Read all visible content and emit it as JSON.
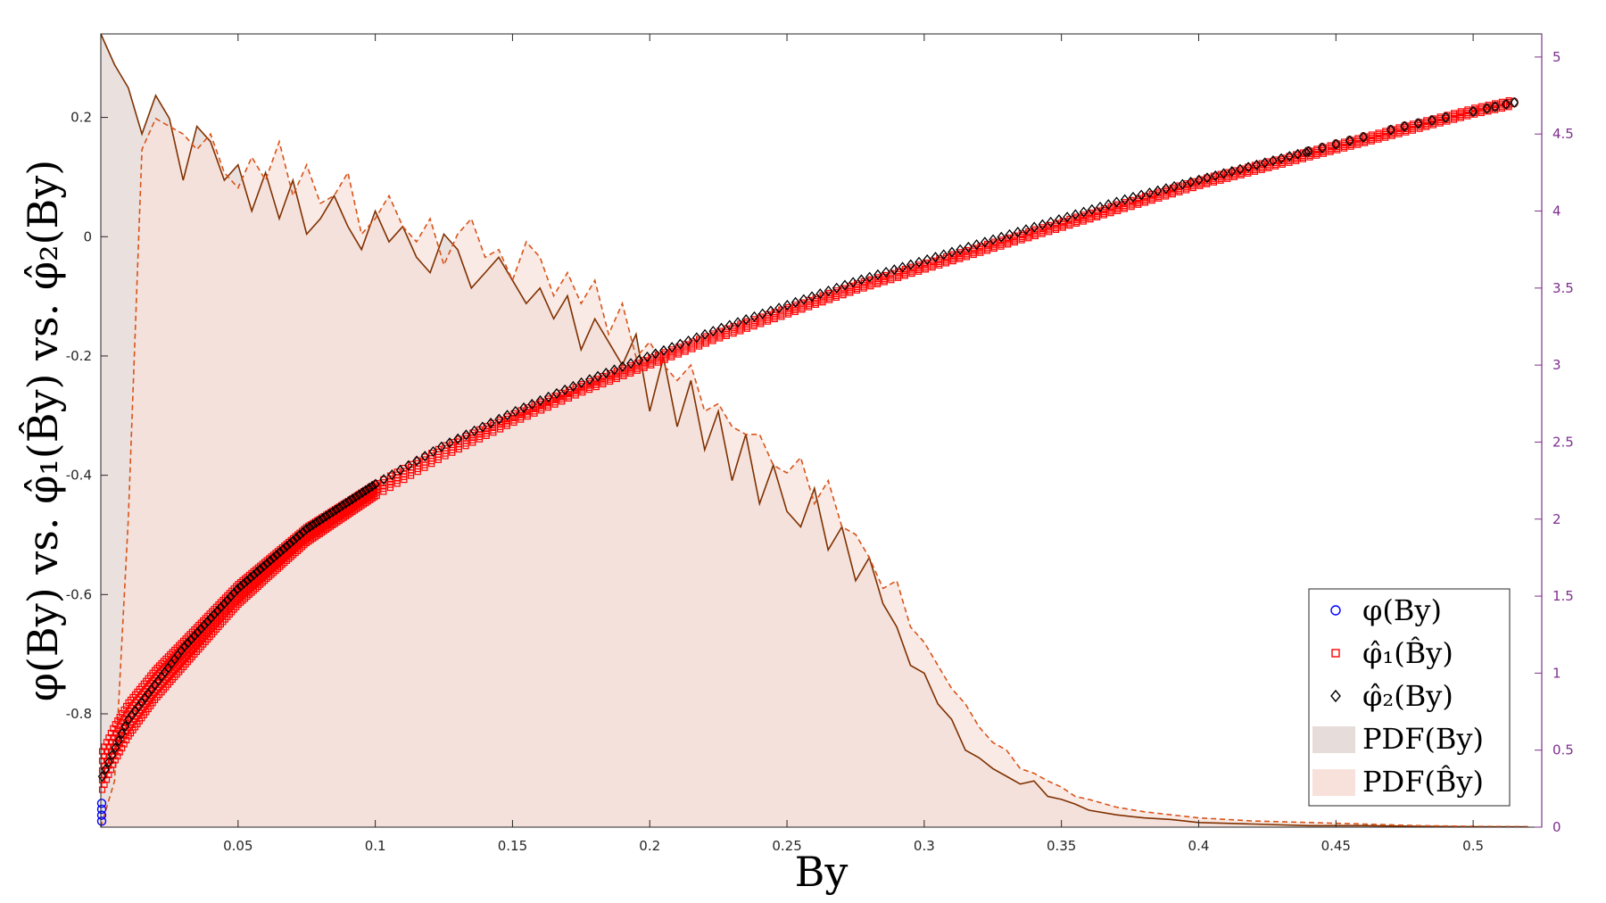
{
  "chart_data": {
    "type": "scatter",
    "xlabel": "By",
    "ylabel": "φ(By) vs. φ̂₁(B̂y) vs. φ̂₂(By)",
    "xlim": [
      0,
      0.525
    ],
    "ylim_left": [
      -0.99,
      0.34
    ],
    "ylim_right": [
      0,
      5.15
    ],
    "x_ticks": [
      0.05,
      0.1,
      0.15,
      0.2,
      0.25,
      0.3,
      0.35,
      0.4,
      0.45,
      0.5
    ],
    "y_left_ticks": [
      -0.8,
      -0.6,
      -0.4,
      -0.2,
      0,
      0.2
    ],
    "y_right_ticks": [
      0,
      0.5,
      1,
      1.5,
      2,
      2.5,
      3,
      3.5,
      4,
      4.5,
      5
    ],
    "legend_position": "bottom-right",
    "legend": [
      "φ(By)",
      "φ̂₁(B̂y)",
      "φ̂₂(By)",
      "PDF(By)",
      "PDF(B̂y)"
    ],
    "scatter_series": [
      {
        "name": "φ(By)",
        "marker": "circle",
        "color": "#0000ff",
        "x": [
          0,
          0,
          0,
          0
        ],
        "y": [
          -0.95,
          -0.96,
          -0.97,
          -0.98
        ]
      },
      {
        "name": "φ̂₁(B̂y)",
        "marker": "square",
        "color": "#ff0000",
        "x": [
          0,
          0.005,
          0.01,
          0.02,
          0.03,
          0.05,
          0.075,
          0.1,
          0.125,
          0.15,
          0.175,
          0.2,
          0.225,
          0.25,
          0.275,
          0.3,
          0.325,
          0.35,
          0.375,
          0.4,
          0.425,
          0.45,
          0.475,
          0.5,
          0.515
        ],
        "y": [
          -0.9,
          -0.85,
          -0.81,
          -0.75,
          -0.7,
          -0.6,
          -0.5,
          -0.425,
          -0.36,
          -0.305,
          -0.255,
          -0.21,
          -0.165,
          -0.125,
          -0.085,
          -0.05,
          -0.015,
          0.02,
          0.055,
          0.09,
          0.12,
          0.15,
          0.18,
          0.21,
          0.225
        ]
      },
      {
        "name": "φ̂₂(By)",
        "marker": "diamond",
        "color": "#000000",
        "x": [
          0,
          0.005,
          0.01,
          0.02,
          0.03,
          0.05,
          0.075,
          0.1,
          0.125,
          0.15,
          0.175,
          0.2,
          0.225,
          0.25,
          0.275,
          0.3,
          0.325,
          0.35,
          0.375,
          0.4,
          0.425,
          0.45,
          0.475,
          0.5,
          0.515
        ],
        "y": [
          -0.91,
          -0.86,
          -0.81,
          -0.75,
          -0.69,
          -0.59,
          -0.49,
          -0.415,
          -0.35,
          -0.295,
          -0.245,
          -0.2,
          -0.155,
          -0.115,
          -0.075,
          -0.04,
          -0.005,
          0.03,
          0.065,
          0.095,
          0.125,
          0.155,
          0.185,
          0.21,
          0.225
        ]
      }
    ],
    "pdf_series": [
      {
        "name": "PDF(By)",
        "axis": "right",
        "line": "solid",
        "color": "#7f3000",
        "fill": "#e6dcd9",
        "x": [
          0,
          0.005,
          0.01,
          0.015,
          0.02,
          0.025,
          0.03,
          0.035,
          0.04,
          0.045,
          0.05,
          0.055,
          0.06,
          0.065,
          0.07,
          0.075,
          0.08,
          0.085,
          0.09,
          0.095,
          0.1,
          0.105,
          0.11,
          0.115,
          0.12,
          0.125,
          0.13,
          0.135,
          0.14,
          0.145,
          0.15,
          0.155,
          0.16,
          0.165,
          0.17,
          0.175,
          0.18,
          0.185,
          0.19,
          0.195,
          0.2,
          0.205,
          0.21,
          0.215,
          0.22,
          0.225,
          0.23,
          0.235,
          0.24,
          0.245,
          0.25,
          0.255,
          0.26,
          0.265,
          0.27,
          0.275,
          0.28,
          0.285,
          0.29,
          0.295,
          0.3,
          0.305,
          0.31,
          0.315,
          0.32,
          0.325,
          0.33,
          0.335,
          0.34,
          0.345,
          0.35,
          0.355,
          0.36,
          0.37,
          0.38,
          0.39,
          0.4,
          0.42,
          0.44,
          0.46,
          0.48,
          0.5,
          0.52
        ],
        "y": [
          5.15,
          4.95,
          4.8,
          4.5,
          4.75,
          4.6,
          4.2,
          4.55,
          4.45,
          4.2,
          4.3,
          4.0,
          4.25,
          3.95,
          4.2,
          3.85,
          3.95,
          4.1,
          3.9,
          3.75,
          4.0,
          3.8,
          3.9,
          3.7,
          3.6,
          3.85,
          3.75,
          3.5,
          3.6,
          3.7,
          3.55,
          3.4,
          3.5,
          3.3,
          3.45,
          3.1,
          3.3,
          3.15,
          3.0,
          3.2,
          2.7,
          3.05,
          2.6,
          2.9,
          2.45,
          2.7,
          2.25,
          2.55,
          2.1,
          2.35,
          2.05,
          1.95,
          2.2,
          1.8,
          1.95,
          1.6,
          1.75,
          1.45,
          1.3,
          1.05,
          1.0,
          0.8,
          0.7,
          0.5,
          0.45,
          0.38,
          0.33,
          0.28,
          0.3,
          0.2,
          0.18,
          0.15,
          0.11,
          0.08,
          0.06,
          0.05,
          0.03,
          0.02,
          0.01,
          0.01,
          0.005,
          0.003,
          0.002
        ]
      },
      {
        "name": "PDF(B̂y)",
        "axis": "right",
        "line": "dashed",
        "color": "#d95319",
        "fill": "#f8e1da",
        "x": [
          0,
          0.005,
          0.01,
          0.015,
          0.02,
          0.025,
          0.03,
          0.035,
          0.04,
          0.045,
          0.05,
          0.055,
          0.06,
          0.065,
          0.07,
          0.075,
          0.08,
          0.085,
          0.09,
          0.095,
          0.1,
          0.105,
          0.11,
          0.115,
          0.12,
          0.125,
          0.13,
          0.135,
          0.14,
          0.145,
          0.15,
          0.155,
          0.16,
          0.165,
          0.17,
          0.175,
          0.18,
          0.185,
          0.19,
          0.195,
          0.2,
          0.205,
          0.21,
          0.215,
          0.22,
          0.225,
          0.23,
          0.235,
          0.24,
          0.245,
          0.25,
          0.255,
          0.26,
          0.265,
          0.27,
          0.275,
          0.28,
          0.285,
          0.29,
          0.295,
          0.3,
          0.305,
          0.31,
          0.315,
          0.32,
          0.325,
          0.33,
          0.335,
          0.34,
          0.345,
          0.35,
          0.355,
          0.36,
          0.37,
          0.38,
          0.39,
          0.4,
          0.42,
          0.44,
          0.46,
          0.48,
          0.5,
          0.52
        ],
        "y": [
          0.0,
          0.3,
          2.0,
          4.4,
          4.6,
          4.55,
          4.5,
          4.4,
          4.5,
          4.25,
          4.15,
          4.35,
          4.2,
          4.45,
          4.1,
          4.3,
          4.05,
          4.1,
          4.25,
          3.85,
          3.95,
          4.1,
          3.9,
          3.8,
          3.95,
          3.65,
          3.85,
          3.95,
          3.7,
          3.75,
          3.55,
          3.8,
          3.7,
          3.45,
          3.6,
          3.4,
          3.55,
          3.2,
          3.4,
          3.05,
          3.15,
          3.0,
          2.9,
          3.0,
          2.7,
          2.75,
          2.6,
          2.55,
          2.55,
          2.35,
          2.3,
          2.4,
          2.1,
          2.25,
          1.95,
          1.9,
          1.75,
          1.55,
          1.6,
          1.3,
          1.2,
          1.05,
          0.9,
          0.8,
          0.65,
          0.55,
          0.5,
          0.38,
          0.35,
          0.3,
          0.26,
          0.2,
          0.18,
          0.13,
          0.1,
          0.08,
          0.06,
          0.04,
          0.03,
          0.02,
          0.01,
          0.005,
          0.003
        ]
      }
    ]
  }
}
